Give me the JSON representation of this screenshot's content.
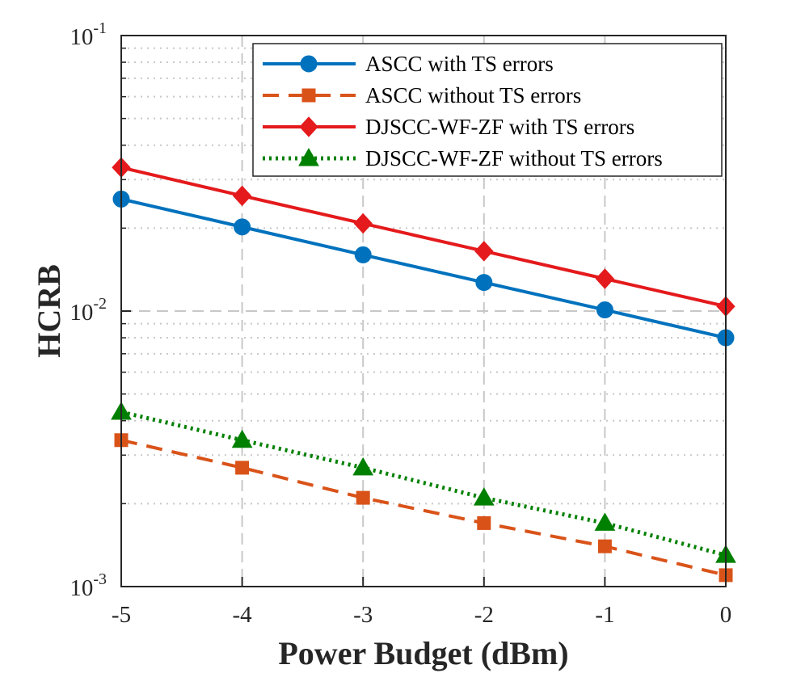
{
  "chart_data": {
    "type": "line",
    "title": "",
    "xlabel": "Power Budget (dBm)",
    "ylabel": "HCRB",
    "x": [
      -5,
      -4,
      -3,
      -2,
      -1,
      0
    ],
    "xlim": [
      -5,
      0
    ],
    "ylim": [
      0.001,
      0.1
    ],
    "yscale": "log",
    "x_tick_labels": [
      "-5",
      "-4",
      "-3",
      "-2",
      "-1",
      "0"
    ],
    "y_ticks": [
      {
        "base": "10",
        "exp": "-1"
      },
      {
        "base": "10",
        "exp": "-2"
      },
      {
        "base": "10",
        "exp": "-3"
      }
    ],
    "grid": true,
    "legend_position": "top-right",
    "series": [
      {
        "name": "ASCC with TS errors",
        "color": "#0072BD",
        "line": "solid",
        "marker": "circle",
        "values": [
          0.0255,
          0.0202,
          0.016,
          0.0127,
          0.0101,
          0.008
        ]
      },
      {
        "name": "ASCC without TS errors",
        "color": "#D95319",
        "line": "dashed",
        "marker": "square",
        "values": [
          0.0034,
          0.0027,
          0.0021,
          0.0017,
          0.0014,
          0.0011
        ]
      },
      {
        "name": "DJSCC-WF-ZF with TS errors",
        "color": "#E41A1C",
        "line": "solid",
        "marker": "diamond",
        "values": [
          0.0332,
          0.0262,
          0.0208,
          0.0165,
          0.0131,
          0.0104
        ]
      },
      {
        "name": "DJSCC-WF-ZF without TS errors",
        "color": "#008000",
        "line": "dotted",
        "marker": "triangle",
        "values": [
          0.0043,
          0.0034,
          0.0027,
          0.0021,
          0.0017,
          0.0013
        ]
      }
    ]
  }
}
